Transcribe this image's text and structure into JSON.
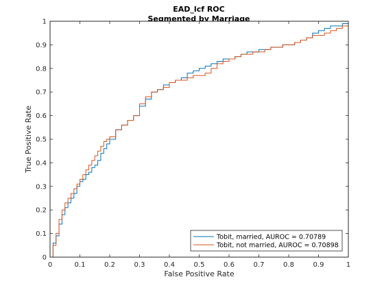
{
  "chart_data": {
    "type": "line",
    "title": "EAD_lcf ROC",
    "subtitle": "Segmented by Marriage",
    "xlabel": "False Positive Rate",
    "ylabel": "True Positive Rate",
    "xlim": [
      0,
      1
    ],
    "ylim": [
      0,
      1
    ],
    "xticks": [
      "0",
      "0.1",
      "0.2",
      "0.3",
      "0.4",
      "0.5",
      "0.6",
      "0.7",
      "0.8",
      "0.9",
      "1"
    ],
    "yticks": [
      "0",
      "0.1",
      "0.2",
      "0.3",
      "0.4",
      "0.5",
      "0.6",
      "0.7",
      "0.8",
      "0.9",
      "1"
    ],
    "grid": false,
    "legend_position": "bottom-right",
    "series": [
      {
        "name": "Tobit, married, AUROC = 0.70789",
        "color": "#0072BD",
        "x": [
          0,
          0.01,
          0.02,
          0.03,
          0.04,
          0.05,
          0.06,
          0.07,
          0.08,
          0.09,
          0.1,
          0.11,
          0.12,
          0.13,
          0.14,
          0.15,
          0.16,
          0.17,
          0.18,
          0.19,
          0.2,
          0.22,
          0.24,
          0.26,
          0.28,
          0.3,
          0.32,
          0.34,
          0.36,
          0.38,
          0.4,
          0.42,
          0.44,
          0.46,
          0.48,
          0.5,
          0.52,
          0.54,
          0.56,
          0.58,
          0.6,
          0.62,
          0.64,
          0.66,
          0.68,
          0.7,
          0.72,
          0.74,
          0.76,
          0.78,
          0.8,
          0.82,
          0.84,
          0.86,
          0.88,
          0.9,
          0.92,
          0.94,
          0.96,
          0.98,
          1.0
        ],
        "y": [
          0,
          0.06,
          0.09,
          0.14,
          0.18,
          0.21,
          0.23,
          0.25,
          0.27,
          0.3,
          0.32,
          0.33,
          0.35,
          0.36,
          0.38,
          0.39,
          0.41,
          0.44,
          0.46,
          0.48,
          0.5,
          0.54,
          0.56,
          0.58,
          0.6,
          0.64,
          0.67,
          0.7,
          0.71,
          0.73,
          0.74,
          0.75,
          0.76,
          0.78,
          0.79,
          0.8,
          0.81,
          0.82,
          0.83,
          0.84,
          0.84,
          0.85,
          0.86,
          0.87,
          0.87,
          0.88,
          0.88,
          0.89,
          0.89,
          0.9,
          0.9,
          0.91,
          0.92,
          0.93,
          0.95,
          0.96,
          0.97,
          0.98,
          0.98,
          0.99,
          1.0
        ]
      },
      {
        "name": "Tobit, not married, AUROC = 0.70898",
        "color": "#D95319",
        "x": [
          0,
          0.01,
          0.02,
          0.03,
          0.04,
          0.05,
          0.06,
          0.07,
          0.08,
          0.09,
          0.1,
          0.11,
          0.12,
          0.13,
          0.14,
          0.15,
          0.16,
          0.17,
          0.18,
          0.19,
          0.2,
          0.22,
          0.24,
          0.26,
          0.28,
          0.3,
          0.32,
          0.34,
          0.36,
          0.38,
          0.4,
          0.42,
          0.44,
          0.46,
          0.48,
          0.5,
          0.52,
          0.54,
          0.56,
          0.58,
          0.6,
          0.62,
          0.64,
          0.66,
          0.68,
          0.7,
          0.72,
          0.74,
          0.76,
          0.78,
          0.8,
          0.82,
          0.84,
          0.86,
          0.88,
          0.9,
          0.92,
          0.94,
          0.96,
          0.98,
          1.0
        ],
        "y": [
          0,
          0.05,
          0.1,
          0.16,
          0.2,
          0.23,
          0.25,
          0.27,
          0.29,
          0.31,
          0.33,
          0.35,
          0.37,
          0.39,
          0.41,
          0.43,
          0.45,
          0.47,
          0.49,
          0.5,
          0.51,
          0.54,
          0.56,
          0.58,
          0.6,
          0.65,
          0.68,
          0.7,
          0.71,
          0.72,
          0.74,
          0.75,
          0.75,
          0.76,
          0.77,
          0.77,
          0.78,
          0.8,
          0.82,
          0.83,
          0.84,
          0.85,
          0.86,
          0.86,
          0.87,
          0.87,
          0.88,
          0.89,
          0.89,
          0.9,
          0.9,
          0.91,
          0.92,
          0.93,
          0.94,
          0.94,
          0.95,
          0.96,
          0.97,
          0.98,
          1.0
        ]
      }
    ]
  }
}
